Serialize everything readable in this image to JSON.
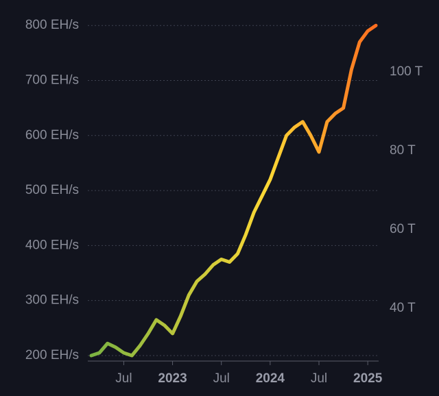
{
  "chart_data": {
    "type": "line",
    "x": [
      "2022-03",
      "2022-04",
      "2022-05",
      "2022-06",
      "2022-07",
      "2022-08",
      "2022-09",
      "2022-10",
      "2022-11",
      "2022-12",
      "2023-01",
      "2023-02",
      "2023-03",
      "2023-04",
      "2023-05",
      "2023-06",
      "2023-07",
      "2023-08",
      "2023-09",
      "2023-10",
      "2023-11",
      "2023-12",
      "2024-01",
      "2024-02",
      "2024-03",
      "2024-04",
      "2024-05",
      "2024-06",
      "2024-07",
      "2024-08",
      "2024-09",
      "2024-10",
      "2024-11",
      "2024-12",
      "2025-01",
      "2025-02"
    ],
    "series": [
      {
        "colors": [
          "#7cb342",
          "#fdd835",
          "#ff6d1f"
        ],
        "values": [
          200,
          205,
          222,
          215,
          205,
          200,
          218,
          240,
          265,
          255,
          240,
          272,
          310,
          335,
          348,
          365,
          375,
          370,
          385,
          420,
          460,
          490,
          520,
          560,
          600,
          615,
          625,
          600,
          570,
          625,
          640,
          650,
          720,
          770,
          790,
          800
        ]
      }
    ],
    "xlim": [
      "2022-03",
      "2025-02"
    ],
    "xticks": [
      {
        "value": "2022-07",
        "label": "Jul"
      },
      {
        "value": "2023-01",
        "label": "2023"
      },
      {
        "value": "2023-07",
        "label": "Jul"
      },
      {
        "value": "2024-01",
        "label": "2024"
      },
      {
        "value": "2024-07",
        "label": "Jul"
      },
      {
        "value": "2025-01",
        "label": "2025"
      }
    ],
    "ylim": [
      190,
      809
    ],
    "yticks": [
      {
        "value": 200,
        "label": "200 EH/s"
      },
      {
        "value": 300,
        "label": "300 EH/s"
      },
      {
        "value": 400,
        "label": "400 EH/s"
      },
      {
        "value": 500,
        "label": "500 EH/s"
      },
      {
        "value": 600,
        "label": "600 EH/s"
      },
      {
        "value": 700,
        "label": "700 EH/s"
      },
      {
        "value": 800,
        "label": "800 EH/s"
      }
    ],
    "y2lim": [
      26.6,
      113
    ],
    "y2ticks": [
      {
        "value": 40,
        "label": "40 T"
      },
      {
        "value": 60,
        "label": "60 T"
      },
      {
        "value": 80,
        "label": "80 T"
      },
      {
        "value": 100,
        "label": "100 T"
      }
    ],
    "grid": true
  }
}
